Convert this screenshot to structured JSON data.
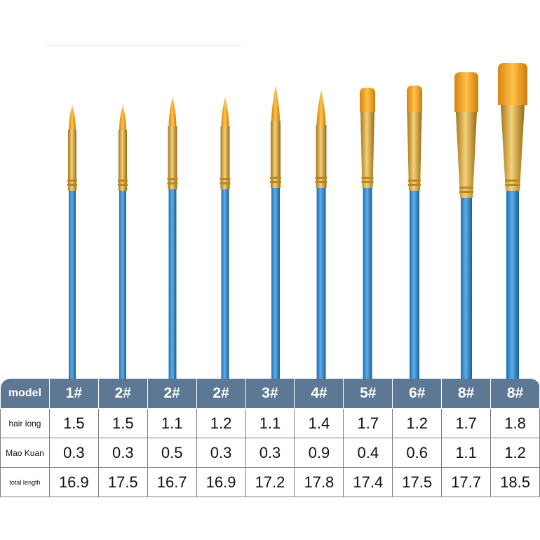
{
  "table": {
    "header": [
      "model",
      "1#",
      "2#",
      "2#",
      "2#",
      "3#",
      "4#",
      "5#",
      "6#",
      "8#",
      "8#"
    ],
    "rows": [
      [
        "hair long",
        "1.5",
        "1.5",
        "1.1",
        "1.2",
        "1.1",
        "1.4",
        "1.7",
        "1.2",
        "1.7",
        "1.8"
      ],
      [
        "Mao Kuan",
        "0.3",
        "0.3",
        "0.5",
        "0.3",
        "0.3",
        "0.9",
        "0.4",
        "0.6",
        "1.1",
        "1.2"
      ],
      [
        "total length",
        "16.9",
        "17.5",
        "16.7",
        "16.9",
        "17.2",
        "17.8",
        "17.4",
        "17.5",
        "17.7",
        "18.5"
      ]
    ]
  }
}
